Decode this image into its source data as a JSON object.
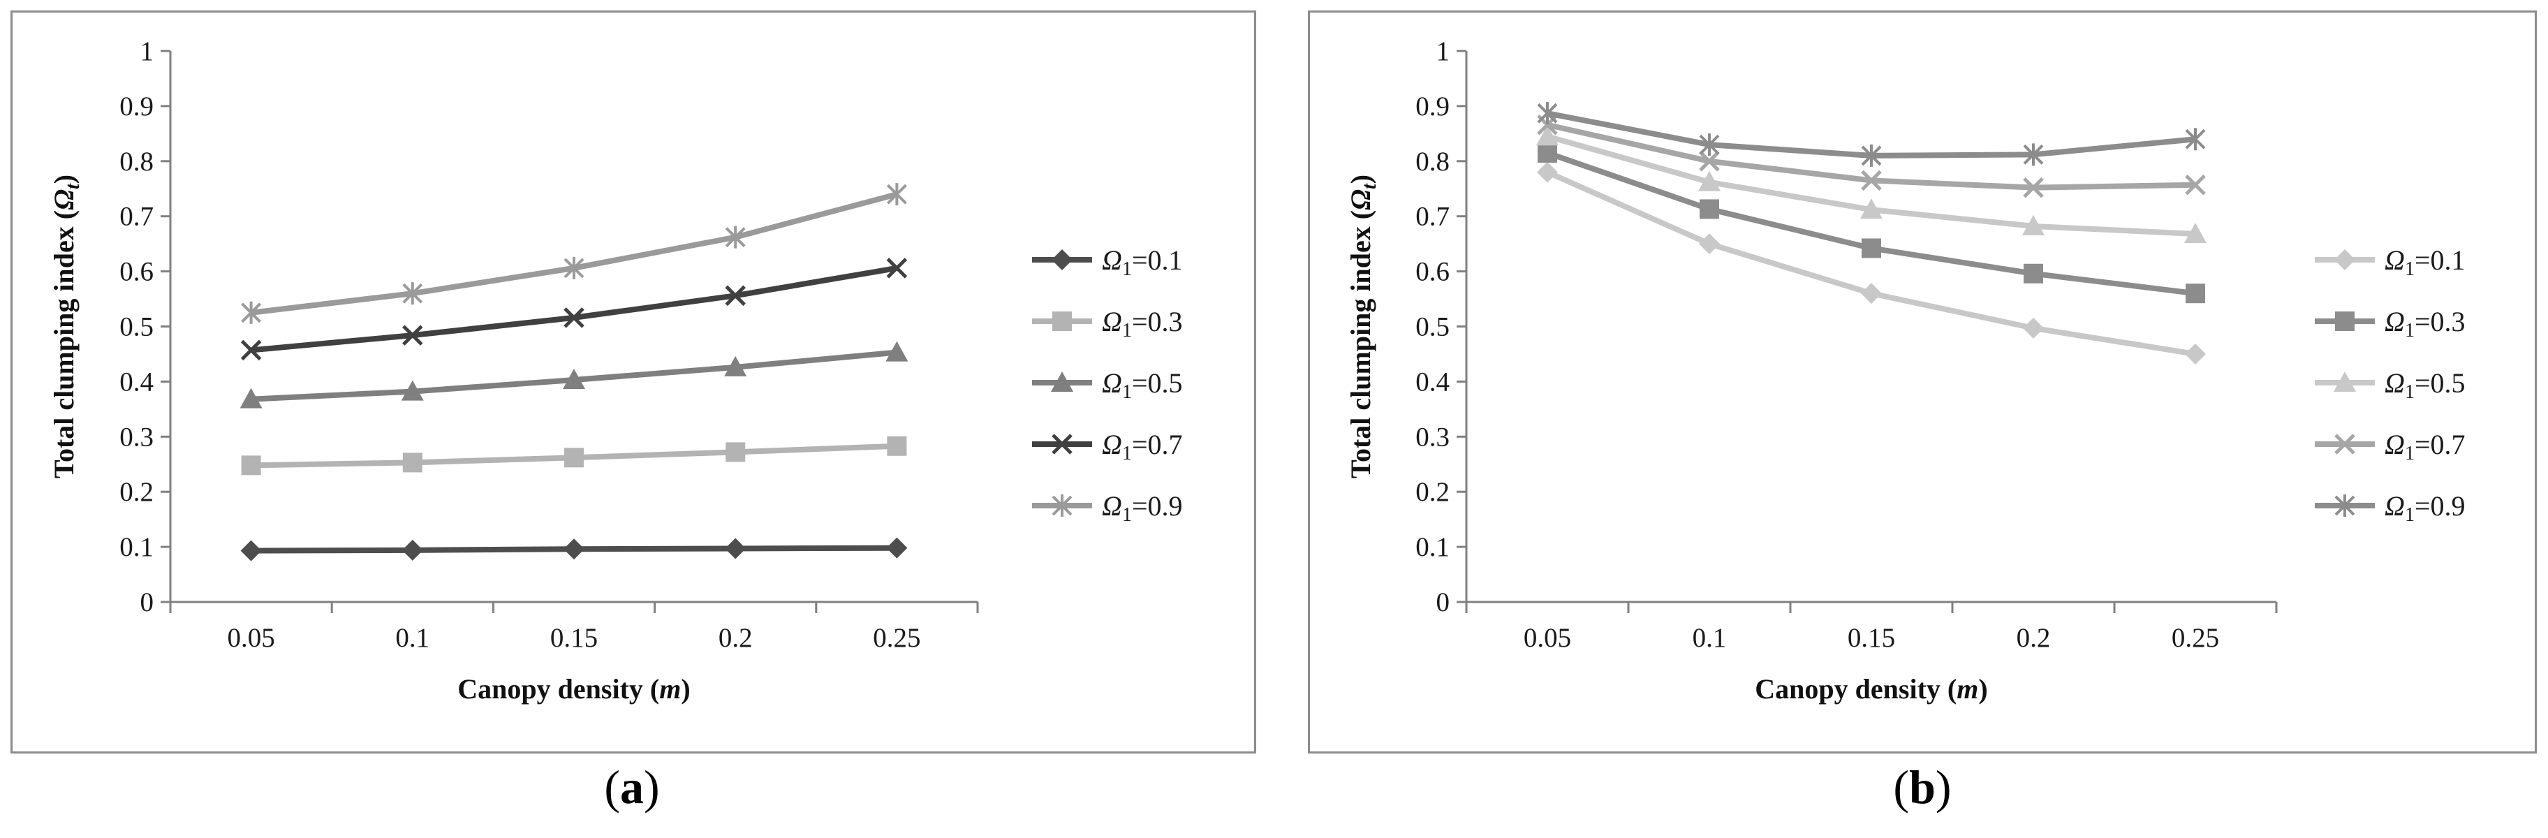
{
  "panels": {
    "a": {
      "caption": "a"
    },
    "b": {
      "caption": "b"
    }
  },
  "chart_data": [
    {
      "type": "line",
      "panel": "a",
      "title": "",
      "xlabel": "Canopy density",
      "xlabel_var": "m",
      "ylabel": "Total clumping index",
      "ylabel_var": "Ω",
      "ylabel_sub": "t",
      "categories": [
        "0.05",
        "0.1",
        "0.15",
        "0.2",
        "0.25"
      ],
      "ylim": [
        0,
        1
      ],
      "yticks": [
        "0",
        "0.1",
        "0.2",
        "0.3",
        "0.4",
        "0.5",
        "0.6",
        "0.7",
        "0.8",
        "0.9",
        "1"
      ],
      "grid": false,
      "legend_position": "right",
      "series": [
        {
          "name": "Ω1=0.1",
          "sym": "Ω",
          "sub": "1",
          "eq": "=0.1",
          "color": "#4d4d4d",
          "marker": "diamond",
          "values": [
            0.093,
            0.094,
            0.096,
            0.097,
            0.098
          ]
        },
        {
          "name": "Ω1=0.3",
          "sym": "Ω",
          "sub": "1",
          "eq": "=0.3",
          "color": "#b3b3b3",
          "marker": "square",
          "values": [
            0.248,
            0.253,
            0.262,
            0.272,
            0.283
          ]
        },
        {
          "name": "Ω1=0.5",
          "sym": "Ω",
          "sub": "1",
          "eq": "=0.5",
          "color": "#7f7f7f",
          "marker": "triangle",
          "values": [
            0.368,
            0.382,
            0.403,
            0.426,
            0.453
          ]
        },
        {
          "name": "Ω1=0.7",
          "sym": "Ω",
          "sub": "1",
          "eq": "=0.7",
          "color": "#404040",
          "marker": "x",
          "values": [
            0.457,
            0.484,
            0.516,
            0.556,
            0.606
          ]
        },
        {
          "name": "Ω1=0.9",
          "sym": "Ω",
          "sub": "1",
          "eq": "=0.9",
          "color": "#9a9a9a",
          "marker": "asterisk",
          "values": [
            0.525,
            0.56,
            0.606,
            0.662,
            0.74
          ]
        }
      ]
    },
    {
      "type": "line",
      "panel": "b",
      "title": "",
      "xlabel": "Canopy density",
      "xlabel_var": "m",
      "ylabel": "Total clumping index",
      "ylabel_var": "Ω",
      "ylabel_sub": "t",
      "categories": [
        "0.05",
        "0.1",
        "0.15",
        "0.2",
        "0.25"
      ],
      "ylim": [
        0,
        1
      ],
      "yticks": [
        "0",
        "0.1",
        "0.2",
        "0.3",
        "0.4",
        "0.5",
        "0.6",
        "0.7",
        "0.8",
        "0.9",
        "1"
      ],
      "grid": false,
      "legend_position": "right",
      "series": [
        {
          "name": "Ω1=0.1",
          "sym": "Ω",
          "sub": "1",
          "eq": "=0.1",
          "color": "#c8c8c8",
          "marker": "diamond",
          "values": [
            0.78,
            0.65,
            0.56,
            0.497,
            0.45
          ]
        },
        {
          "name": "Ω1=0.3",
          "sym": "Ω",
          "sub": "1",
          "eq": "=0.3",
          "color": "#8c8c8c",
          "marker": "square",
          "values": [
            0.815,
            0.713,
            0.642,
            0.596,
            0.56
          ]
        },
        {
          "name": "Ω1=0.5",
          "sym": "Ω",
          "sub": "1",
          "eq": "=0.5",
          "color": "#c8c8c8",
          "marker": "triangle",
          "values": [
            0.845,
            0.762,
            0.712,
            0.682,
            0.668
          ]
        },
        {
          "name": "Ω1=0.7",
          "sym": "Ω",
          "sub": "1",
          "eq": "=0.7",
          "color": "#a6a6a6",
          "marker": "x",
          "values": [
            0.866,
            0.8,
            0.765,
            0.752,
            0.757
          ]
        },
        {
          "name": "Ω1=0.9",
          "sym": "Ω",
          "sub": "1",
          "eq": "=0.9",
          "color": "#8c8c8c",
          "marker": "asterisk",
          "values": [
            0.887,
            0.83,
            0.81,
            0.812,
            0.84
          ]
        }
      ]
    }
  ]
}
